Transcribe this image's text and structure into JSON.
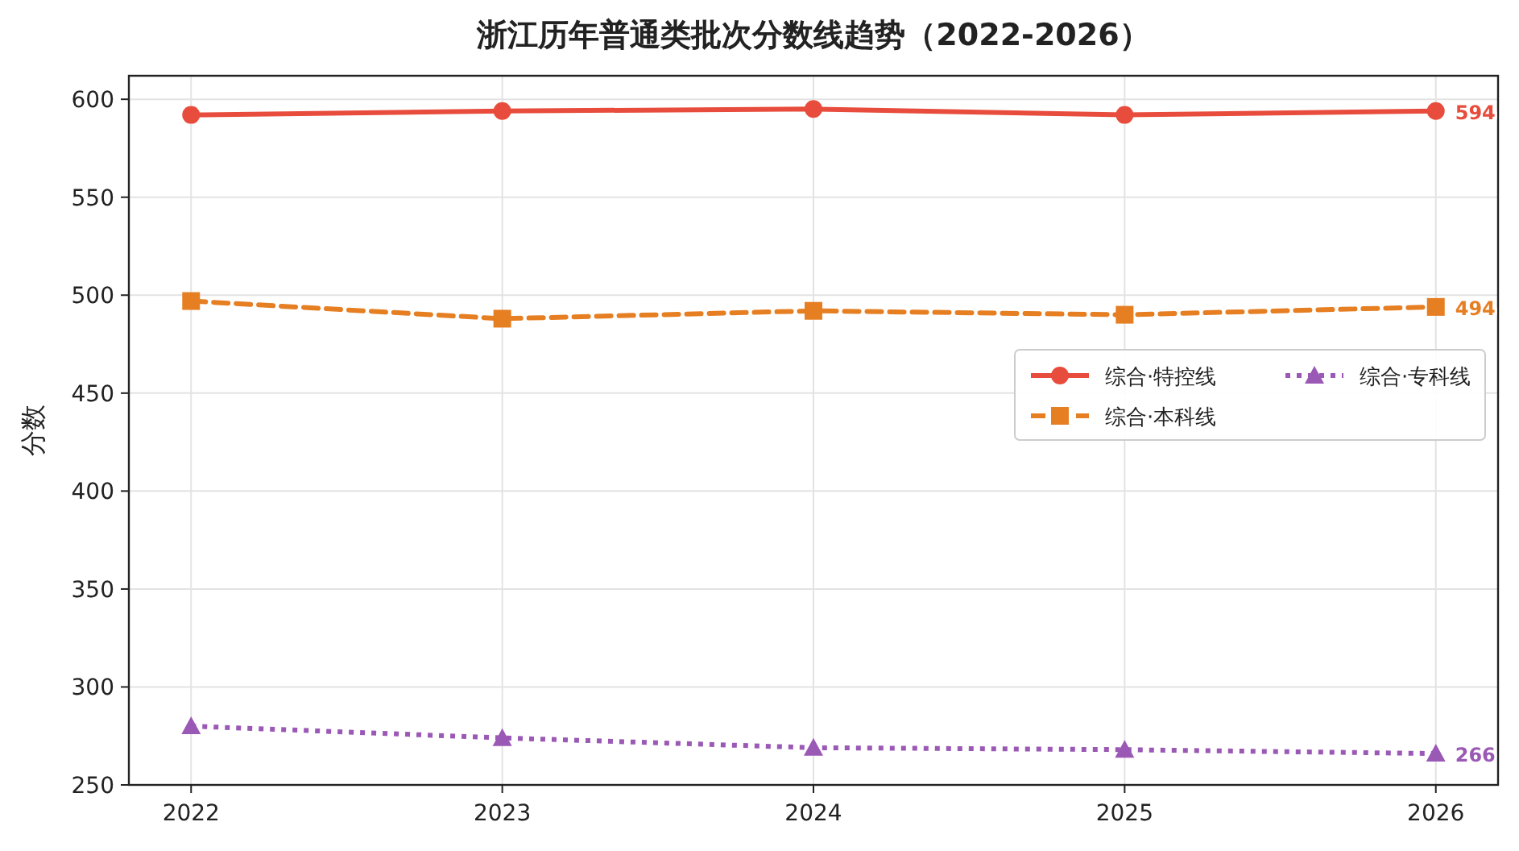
{
  "chart_data": {
    "type": "line",
    "title": "浙江历年普通类批次分数线趋势（2022-2026）",
    "ylabel": "分数",
    "x": [
      2022,
      2023,
      2024,
      2025,
      2026
    ],
    "xlim": [
      2021.8,
      2026.2
    ],
    "xticks": [
      2022,
      2023,
      2024,
      2025,
      2026
    ],
    "ylim": [
      250,
      612
    ],
    "yticks": [
      250,
      300,
      350,
      400,
      450,
      500,
      550,
      600
    ],
    "grid": true,
    "legend": "right",
    "series": [
      {
        "name": "综合·特控线",
        "color": "#e74c3c",
        "marker": "circle",
        "line_style": "solid",
        "values": [
          592,
          594,
          595,
          592,
          594
        ],
        "value_labels": [
          null,
          null,
          null,
          null,
          "594"
        ]
      },
      {
        "name": "综合·本科线",
        "color": "#e67e22",
        "marker": "square",
        "line_style": "dashed",
        "values": [
          497,
          488,
          492,
          490,
          494
        ],
        "value_labels": [
          null,
          null,
          null,
          null,
          "494"
        ]
      },
      {
        "name": "综合·专科线",
        "color": "#9b59b6",
        "marker": "triangle",
        "line_style": "dotted",
        "values": [
          280,
          274,
          269,
          268,
          266
        ],
        "value_labels": [
          null,
          null,
          null,
          null,
          "266"
        ]
      }
    ]
  }
}
